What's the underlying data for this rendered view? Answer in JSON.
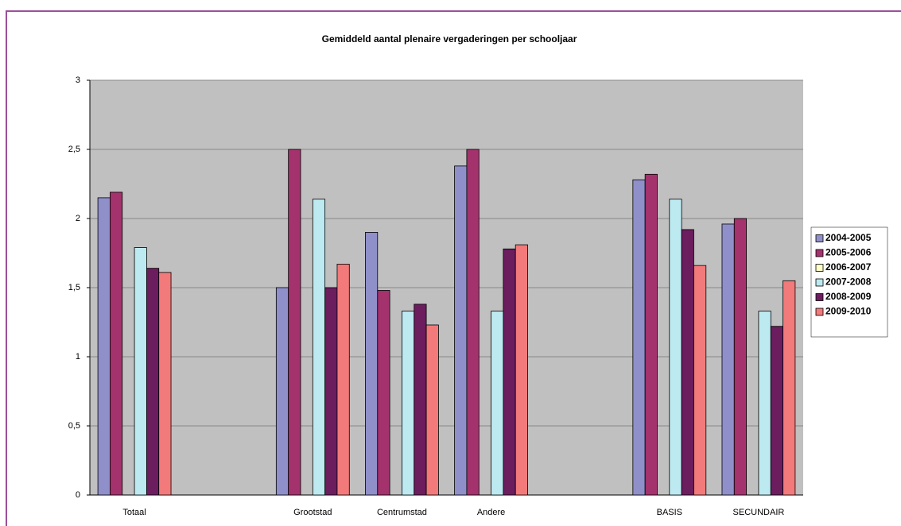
{
  "chart_data": {
    "type": "bar",
    "title": "Gemiddeld aantal plenaire vergaderingen per schooljaar",
    "categories": [
      "Totaal",
      null,
      "Grootstad",
      "Centrumstad",
      "Andere",
      null,
      "BASIS",
      "SECUNDAIR"
    ],
    "series": [
      {
        "name": "2004-2005",
        "color": "#8f8fc9",
        "values": [
          2.15,
          null,
          1.5,
          1.9,
          2.38,
          null,
          2.28,
          1.96
        ]
      },
      {
        "name": "2005-2006",
        "color": "#a3326d",
        "values": [
          2.19,
          null,
          2.5,
          1.48,
          2.5,
          null,
          2.32,
          2.0
        ]
      },
      {
        "name": "2006-2007",
        "color": "#ffffcc",
        "values": [
          null,
          null,
          null,
          null,
          null,
          null,
          null,
          null
        ]
      },
      {
        "name": "2007-2008",
        "color": "#bde9f0",
        "values": [
          1.79,
          null,
          2.14,
          1.33,
          1.33,
          null,
          2.14,
          1.33
        ]
      },
      {
        "name": "2008-2009",
        "color": "#6b1d5e",
        "values": [
          1.64,
          null,
          1.5,
          1.38,
          1.78,
          null,
          1.92,
          1.22
        ]
      },
      {
        "name": "2009-2010",
        "color": "#f27a7a",
        "values": [
          1.61,
          null,
          1.67,
          1.23,
          1.81,
          null,
          1.66,
          1.55
        ]
      }
    ],
    "ylim": [
      0,
      3
    ],
    "yticks": [
      0,
      {
        "value": 0.5,
        "label": "0,5"
      },
      1,
      {
        "value": 1.5,
        "label": "1,5"
      },
      2,
      {
        "value": 2.5,
        "label": "2,5"
      },
      3
    ],
    "grid": true,
    "legend": "right"
  }
}
